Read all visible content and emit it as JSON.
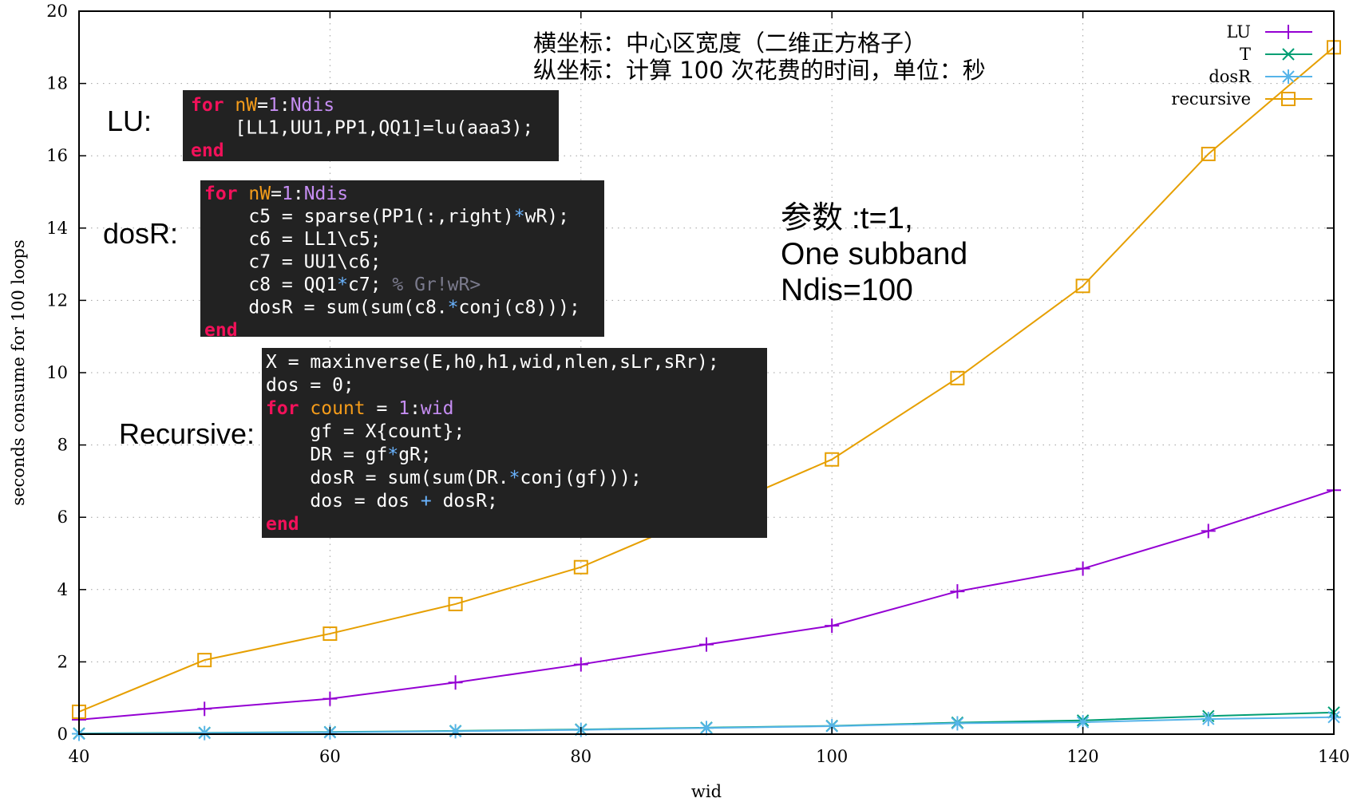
{
  "chart_data": {
    "type": "line",
    "title": "",
    "xlabel": "wid",
    "ylabel": "seconds consume for 100 loops",
    "xlim": [
      40,
      140
    ],
    "ylim": [
      0,
      20
    ],
    "x_ticks": [
      "40",
      "60",
      "80",
      "100",
      "120",
      "140"
    ],
    "y_ticks": [
      "0",
      "2",
      "4",
      "6",
      "8",
      "10",
      "12",
      "14",
      "16",
      "18",
      "20"
    ],
    "grid": true,
    "legend_position": "top-right",
    "x": [
      40,
      50,
      60,
      70,
      80,
      90,
      100,
      110,
      120,
      130,
      140
    ],
    "series": [
      {
        "name": "LU",
        "color": "#9400d3",
        "marker": "plus",
        "values": [
          0.4,
          0.7,
          0.98,
          1.43,
          1.93,
          2.48,
          3.0,
          3.95,
          4.58,
          5.62,
          6.75
        ]
      },
      {
        "name": "T",
        "color": "#009e73",
        "marker": "cross",
        "values": [
          0.02,
          0.04,
          0.06,
          0.09,
          0.13,
          0.18,
          0.23,
          0.32,
          0.38,
          0.5,
          0.6
        ]
      },
      {
        "name": "dosR",
        "color": "#56b4e9",
        "marker": "star",
        "values": [
          0.01,
          0.03,
          0.05,
          0.08,
          0.12,
          0.17,
          0.22,
          0.3,
          0.33,
          0.42,
          0.47
        ]
      },
      {
        "name": "recursive",
        "color": "#e69f00",
        "marker": "square",
        "values": [
          0.62,
          2.05,
          2.78,
          3.6,
          4.62,
          6.1,
          7.6,
          9.85,
          12.4,
          16.05,
          19.0
        ]
      }
    ],
    "annotations": {
      "note_line1": "横坐标：中心区宽度（二维正方格子）",
      "note_line2": "纵坐标：计算 100 次花费的时间，单位：秒",
      "params": [
        "参数 :t=1,",
        "One subband",
        "Ndis=100"
      ]
    }
  },
  "code_blocks": {
    "lu": {
      "label": "LU:",
      "lines": [
        [
          {
            "t": "for",
            "c": "kw-for"
          },
          {
            "t": " "
          },
          {
            "t": "nW",
            "c": "var-orange"
          },
          {
            "t": "="
          },
          {
            "t": "1",
            "c": "num-purple"
          },
          {
            "t": ":"
          },
          {
            "t": "Ndis",
            "c": "num-purple"
          }
        ],
        [
          {
            "t": "    [LL1,UU1,PP1,QQ1]=lu(aaa3);"
          }
        ],
        [
          {
            "t": "end",
            "c": "kw-end"
          }
        ]
      ]
    },
    "dosr": {
      "label": "dosR:",
      "lines": [
        [
          {
            "t": "for",
            "c": "kw-for"
          },
          {
            "t": " "
          },
          {
            "t": "nW",
            "c": "var-orange"
          },
          {
            "t": "="
          },
          {
            "t": "1",
            "c": "num-purple"
          },
          {
            "t": ":"
          },
          {
            "t": "Ndis",
            "c": "num-purple"
          }
        ],
        [
          {
            "t": "    c5 = sparse(PP1(:,right)"
          },
          {
            "t": "*",
            "c": "op-blue"
          },
          {
            "t": "wR);"
          }
        ],
        [
          {
            "t": "    c6 = LL1\\c5;"
          }
        ],
        [
          {
            "t": "    c7 = UU1\\c6;"
          }
        ],
        [
          {
            "t": "    c8 = QQ1"
          },
          {
            "t": "*",
            "c": "op-blue"
          },
          {
            "t": "c7; "
          },
          {
            "t": "% Gr!wR>",
            "c": "comment"
          }
        ],
        [
          {
            "t": "    dosR = sum(sum(c8."
          },
          {
            "t": "*",
            "c": "op-blue"
          },
          {
            "t": "conj(c8)));"
          }
        ],
        [
          {
            "t": "end",
            "c": "kw-end"
          }
        ]
      ]
    },
    "recursive": {
      "label": "Recursive:",
      "lines": [
        [
          {
            "t": "X = maxinverse(E,h0,h1,wid,nlen,sLr,sRr);"
          }
        ],
        [
          {
            "t": "dos = 0;"
          }
        ],
        [
          {
            "t": "for",
            "c": "kw-for"
          },
          {
            "t": " "
          },
          {
            "t": "count",
            "c": "var-orange"
          },
          {
            "t": " = "
          },
          {
            "t": "1",
            "c": "num-purple"
          },
          {
            "t": ":"
          },
          {
            "t": "wid",
            "c": "num-purple"
          }
        ],
        [
          {
            "t": "    gf = X{count};"
          }
        ],
        [
          {
            "t": "    DR = gf"
          },
          {
            "t": "*",
            "c": "op-blue"
          },
          {
            "t": "gR;"
          }
        ],
        [
          {
            "t": "    dosR = sum(sum(DR."
          },
          {
            "t": "*",
            "c": "op-blue"
          },
          {
            "t": "conj(gf)));"
          }
        ],
        [
          {
            "t": "    dos = dos "
          },
          {
            "t": "+",
            "c": "op-blue"
          },
          {
            "t": " dosR;"
          }
        ],
        [
          {
            "t": "end",
            "c": "kw-end"
          }
        ]
      ]
    }
  }
}
